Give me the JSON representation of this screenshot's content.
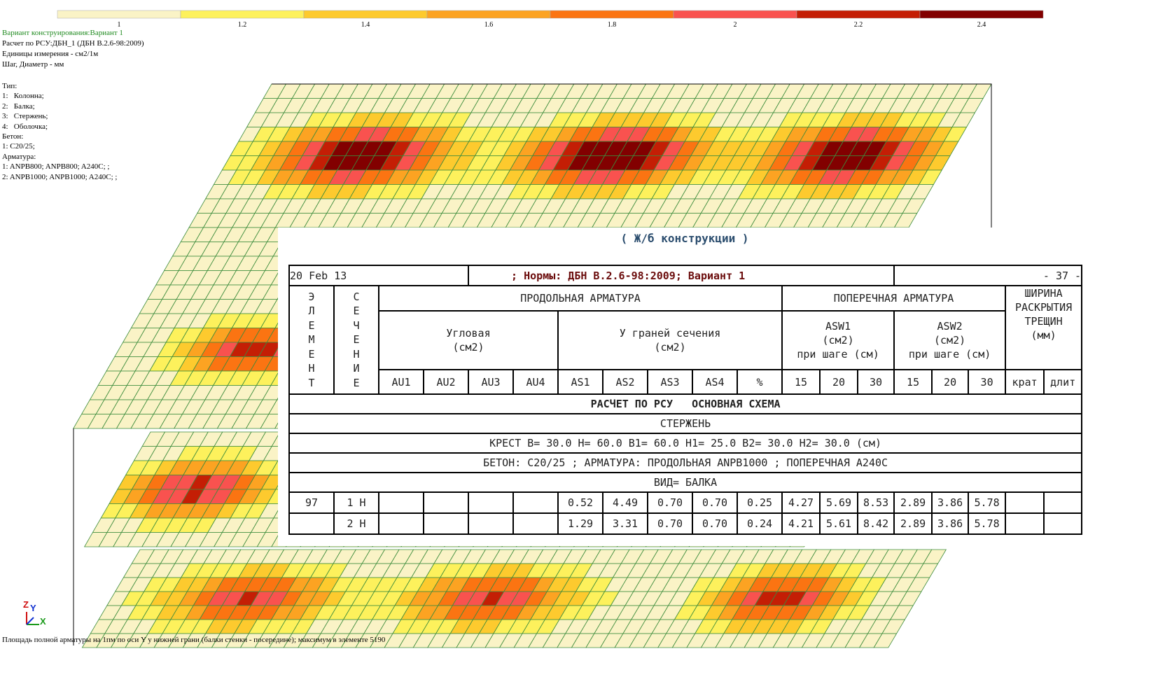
{
  "legend": {
    "colors": [
      "#faf3c6",
      "#fdf15c",
      "#fdca2e",
      "#fca322",
      "#fb7412",
      "#f9524f",
      "#c41e05",
      "#820000"
    ],
    "ticks": [
      "1",
      "1.2",
      "1.4",
      "1.6",
      "1.8",
      "2",
      "2.2",
      "2.4"
    ]
  },
  "info": {
    "header": [
      "Вариант конструирования:Вариант 1",
      "Расчет по РСУ:ДБН_1 (ДБН В.2.6-98:2009)",
      "Единицы измерения - см2/1м",
      "Шаг, Диаметр - мм"
    ],
    "details": [
      "Тип:",
      "1:   Колонна;",
      "2:   Балка;",
      "3:   Стержень;",
      "4:   Оболочка;",
      "Бетон:",
      "1: C20/25;",
      "Арматура:",
      "1: ANPB800; ANPB800; A240C; ;",
      "2: ANPB1000; ANPB1000; A240C; ;"
    ]
  },
  "report": {
    "subtitle": "( Ж/б конструкции )",
    "date": "20 Feb 13",
    "norms": "; Нормы: ДБН В.2.6-98:2009; Вариант 1",
    "page": "- 37 -",
    "headers": {
      "element": "ЭЛЕМЕНТ",
      "section": "СЕЧЕНИЕ",
      "longitudinal": "ПРОДОЛЬНАЯ АРМАТУРА",
      "transverse": "ПОПЕРЕЧНАЯ АРМАТУРА",
      "crack": "ШИРИНА\nРАСКРЫТИЯ\nТРЕЩИН\n(мм)",
      "corner": "Угловая\n(см2)",
      "faces": "У граней сечения\n(см2)",
      "asw1": "ASW1\n(см2)\nпри шаге  (см)",
      "asw2": "ASW2\n(см2)\nпри шаге  (см)",
      "sub": [
        "AU1",
        "AU2",
        "AU3",
        "AU4",
        "AS1",
        "AS2",
        "AS3",
        "AS4",
        "%",
        "15",
        "20",
        "30",
        "15",
        "20",
        "30",
        "крат",
        "длит"
      ]
    },
    "sections": [
      "РАСЧЕТ ПО РСУ   ОСНОВНАЯ СХЕМА",
      "СТЕРЖЕНЬ",
      "КРЕСТ B= 30.0 H= 60.0 B1= 60.0 H1= 25.0 B2= 30.0 H2= 30.0 (см)",
      "БЕТОН: C20/25 ; АРМАТУРА: ПРОДОЛЬНАЯ ANPB1000 ; ПОПЕРЕЧНАЯ A240C",
      "ВИД= БАЛКА"
    ],
    "rows": [
      [
        "97",
        "1 Н",
        null,
        null,
        null,
        null,
        "0.52",
        "4.49",
        "0.70",
        "0.70",
        "0.25",
        "4.27",
        "5.69",
        "8.53",
        "2.89",
        "3.86",
        "5.78",
        null,
        null
      ],
      [
        null,
        "2 Н",
        null,
        null,
        null,
        null,
        "1.29",
        "3.31",
        "0.70",
        "0.70",
        "0.24",
        "4.21",
        "5.61",
        "8.42",
        "2.89",
        "3.86",
        "5.78",
        null,
        null
      ]
    ]
  },
  "footer": "Площадь полной арматуры на 1пм по оси Y у нижней грани (балки стенки - посередине); максимум в элементе 5190"
}
